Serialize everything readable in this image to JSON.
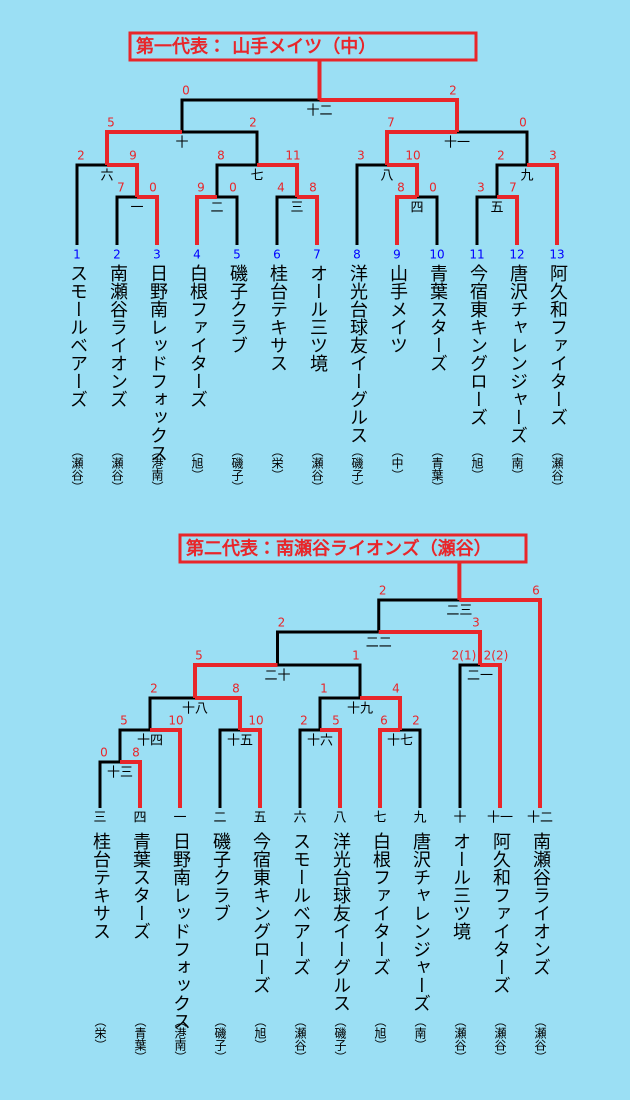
{
  "bracket1": {
    "title": "第一代表： 山手メイツ（中）",
    "teams": [
      {
        "number": "1",
        "name": "スモールベアーズ",
        "area": "（瀬谷）"
      },
      {
        "number": "2",
        "name": "南瀬谷ライオンズ",
        "area": "（瀬谷）"
      },
      {
        "number": "3",
        "name": "日野南レッドフォックス",
        "area": "（港南）"
      },
      {
        "number": "4",
        "name": "白根ファイターズ",
        "area": "（旭）"
      },
      {
        "number": "5",
        "name": "磯子クラブ",
        "area": "（磯子）"
      },
      {
        "number": "6",
        "name": "桂台テキサス",
        "area": "（栄）"
      },
      {
        "number": "7",
        "name": "オール三ツ境",
        "area": "（瀬谷）"
      },
      {
        "number": "8",
        "name": "洋光台球友イーグルス",
        "area": "（磯子）"
      },
      {
        "number": "9",
        "name": "山手メイツ",
        "area": "（中）"
      },
      {
        "number": "10",
        "name": "青葉スターズ",
        "area": "（青葉）"
      },
      {
        "number": "11",
        "name": "今宿東キングローズ",
        "area": "（旭）"
      },
      {
        "number": "12",
        "name": "唐沢チャレンジャーズ",
        "area": "（南）"
      },
      {
        "number": "13",
        "name": "阿久和ファイターズ",
        "area": "（瀬谷）"
      }
    ],
    "matches": [
      {
        "label": "一",
        "scores": [
          7,
          0
        ]
      },
      {
        "label": "二",
        "scores": [
          9,
          0
        ]
      },
      {
        "label": "三",
        "scores": [
          4,
          8
        ]
      },
      {
        "label": "四",
        "scores": [
          8,
          0
        ]
      },
      {
        "label": "五",
        "scores": [
          3,
          7
        ]
      },
      {
        "label": "六",
        "scores": [
          2,
          9
        ]
      },
      {
        "label": "七",
        "scores": [
          8,
          11
        ]
      },
      {
        "label": "八",
        "scores": [
          3,
          10
        ]
      },
      {
        "label": "九",
        "scores": [
          2,
          3
        ]
      },
      {
        "label": "十",
        "scores": [
          5,
          2
        ]
      },
      {
        "label": "十一",
        "scores": [
          7,
          0
        ]
      },
      {
        "label": "十二",
        "scores": [
          0,
          2
        ]
      }
    ]
  },
  "bracket2": {
    "title": "第二代表：南瀬谷ライオンズ（瀬谷）",
    "teams": [
      {
        "number": "三",
        "name": "桂台テキサス",
        "area": "（栄）"
      },
      {
        "number": "四",
        "name": "青葉スターズ",
        "area": "（青葉）"
      },
      {
        "number": "一",
        "name": "日野南レッドフォックス",
        "area": "（港南）"
      },
      {
        "number": "二",
        "name": "磯子クラブ",
        "area": "（磯子）"
      },
      {
        "number": "五",
        "name": "今宿東キングローズ",
        "area": "（旭）"
      },
      {
        "number": "六",
        "name": "スモールベアーズ",
        "area": "（瀬谷）"
      },
      {
        "number": "八",
        "name": "洋光台球友イーグルス",
        "area": "（磯子）"
      },
      {
        "number": "七",
        "name": "白根ファイターズ",
        "area": "（旭）"
      },
      {
        "number": "九",
        "name": "唐沢チャレンジャーズ",
        "area": "（南）"
      },
      {
        "number": "十",
        "name": "オール三ツ境",
        "area": "（瀬谷）"
      },
      {
        "number": "十一",
        "name": "阿久和ファイターズ",
        "area": "（瀬谷）"
      },
      {
        "number": "十二",
        "name": "南瀬谷ライオンズ",
        "area": "（瀬谷）"
      }
    ],
    "matches": [
      {
        "label": "十三",
        "scores": [
          0,
          8
        ]
      },
      {
        "label": "十四",
        "scores": [
          5,
          10
        ]
      },
      {
        "label": "十五",
        "scores": [
          null,
          10
        ]
      },
      {
        "label": "十六",
        "scores": [
          2,
          5
        ]
      },
      {
        "label": "十七",
        "scores": [
          6,
          2
        ]
      },
      {
        "label": "十八",
        "scores": [
          2,
          8
        ]
      },
      {
        "label": "十九",
        "scores": [
          1,
          4
        ]
      },
      {
        "label": "二十",
        "scores": [
          5,
          1
        ]
      },
      {
        "label": "二一",
        "scores": [
          "2(1)",
          "2(2)"
        ]
      },
      {
        "label": "二二",
        "scores": [
          2,
          3
        ]
      },
      {
        "label": "二三",
        "scores": [
          2,
          6
        ]
      }
    ]
  }
}
